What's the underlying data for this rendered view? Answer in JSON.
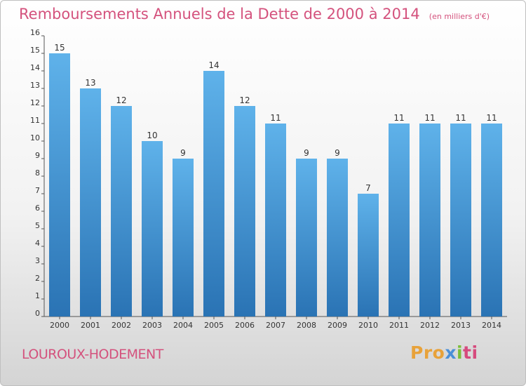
{
  "title": "Remboursements Annuels de la Dette de 2000 à 2014",
  "unit_note": "(en milliers d'€)",
  "commune": "LOUROUX-HODEMENT",
  "logo": {
    "parts": [
      "Pro",
      "x",
      "i",
      "ti"
    ],
    "colors": [
      "#e8a23a",
      "#4a8fd8",
      "#7bbf3a",
      "#d64a7d"
    ]
  },
  "colors": {
    "title": "#d4527d",
    "bar_top": "#5fb2ea",
    "bar_bottom": "#2a73b4",
    "axis": "#555555"
  },
  "chart_data": {
    "type": "bar",
    "categories": [
      "2000",
      "2001",
      "2002",
      "2003",
      "2004",
      "2005",
      "2006",
      "2007",
      "2008",
      "2009",
      "2010",
      "2011",
      "2012",
      "2013",
      "2014"
    ],
    "values": [
      15,
      13,
      12,
      10,
      9,
      14,
      12,
      11,
      9,
      9,
      7,
      11,
      11,
      11,
      11
    ],
    "data_labels": [
      "15",
      "13",
      "12",
      "10",
      "9",
      "14",
      "12",
      "11",
      "9",
      "9",
      "7",
      "11",
      "11",
      "11",
      "11"
    ],
    "ylim": [
      0,
      16
    ],
    "yticks": [
      0,
      1,
      2,
      3,
      4,
      5,
      6,
      7,
      8,
      9,
      10,
      11,
      12,
      13,
      14,
      15,
      16
    ],
    "grid": false
  }
}
